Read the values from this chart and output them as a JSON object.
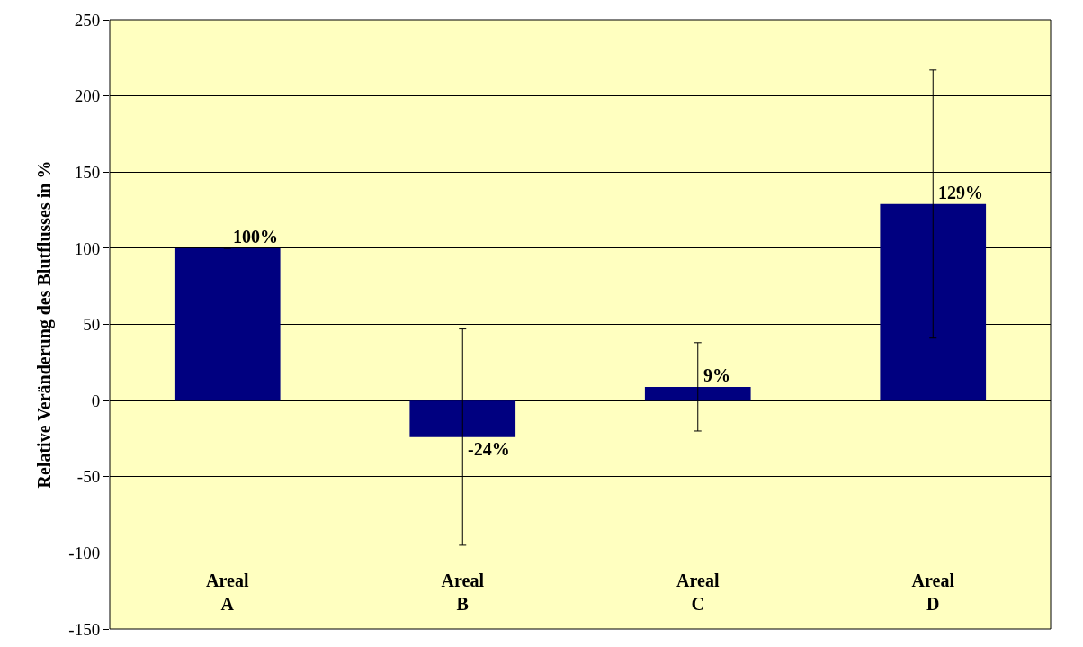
{
  "chart_data": {
    "type": "bar",
    "ylabel": "Relative Veränderung des Blutflusses in %",
    "categories": [
      "Areal\nA",
      "Areal\nB",
      "Areal\nC",
      "Areal\nD"
    ],
    "values": [
      100,
      -24,
      9,
      129
    ],
    "value_labels": [
      "100%",
      "-24%",
      "9%",
      "129%"
    ],
    "errors": [
      null,
      71,
      29,
      88
    ],
    "color": "#000080",
    "ylim": [
      -150,
      250
    ],
    "yticks": [
      -150,
      -100,
      -50,
      0,
      50,
      100,
      150,
      200,
      250
    ],
    "grid": "y",
    "legend": false
  }
}
